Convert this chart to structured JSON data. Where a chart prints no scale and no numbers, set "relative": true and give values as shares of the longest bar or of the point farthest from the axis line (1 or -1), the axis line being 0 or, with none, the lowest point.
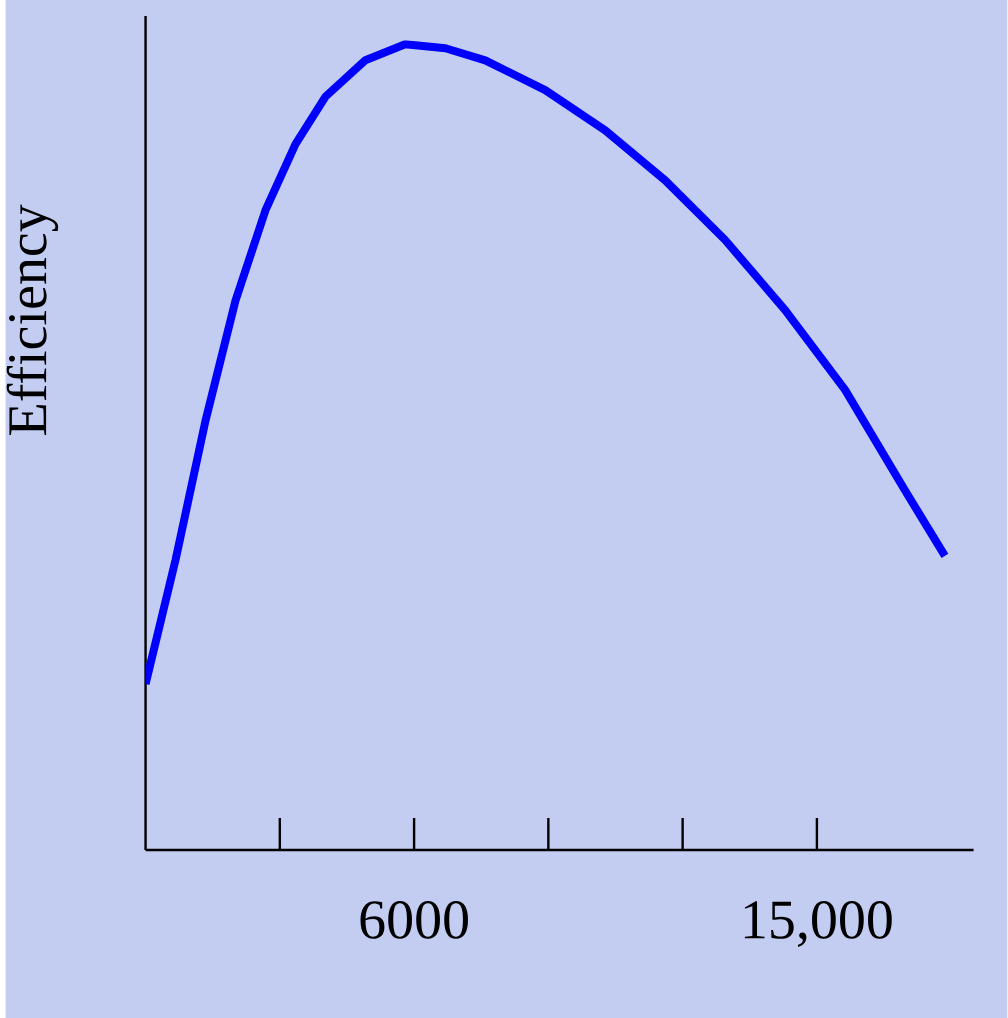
{
  "chart_data": {
    "type": "line",
    "ylabel": "Efficiency",
    "relative": true,
    "x": [
      0,
      670,
      1340,
      2010,
      2680,
      3350,
      4020,
      4910,
      5800,
      6700,
      7590,
      8930,
      10270,
      11610,
      12950,
      14290,
      15630,
      16960,
      17860
    ],
    "series": [
      {
        "color": "#0000ff",
        "values": [
          0.206,
          0.36,
          0.533,
          0.682,
          0.794,
          0.876,
          0.935,
          0.98,
          1,
          0.995,
          0.98,
          0.943,
          0.893,
          0.831,
          0.757,
          0.67,
          0.571,
          0.447,
          0.365
        ]
      }
    ],
    "xlim": [
      0,
      18500
    ],
    "xticks": [
      {
        "value": 3000,
        "label": null
      },
      6000,
      {
        "value": 9000,
        "label": null
      },
      {
        "value": 12000,
        "label": null
      },
      {
        "value": 15000,
        "label": "15,000"
      }
    ],
    "marker": "none",
    "line_style": "solid"
  }
}
